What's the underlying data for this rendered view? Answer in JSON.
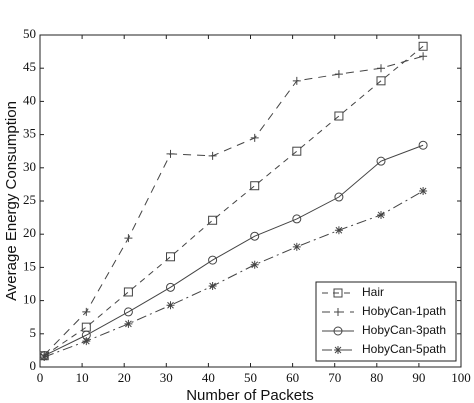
{
  "chart_data": {
    "type": "line",
    "x_label": "Number of Packets",
    "y_label": "Average Energy Consumption",
    "x": [
      1,
      11,
      21,
      31,
      41,
      51,
      61,
      71,
      81,
      91
    ],
    "series": [
      {
        "name": "Hair",
        "color": "#444444",
        "marker": "square",
        "dash": "6,5",
        "values": [
          1.7,
          6.0,
          11.3,
          16.6,
          22.1,
          27.3,
          32.5,
          37.8,
          43.1,
          48.3
        ]
      },
      {
        "name": "HobyCan-1path",
        "color": "#444444",
        "marker": "plus",
        "dash": "8,6",
        "values": [
          1.8,
          8.3,
          19.4,
          32.1,
          31.8,
          34.5,
          43.1,
          44.1,
          45.0,
          46.8
        ]
      },
      {
        "name": "HobyCan-3path",
        "color": "#444444",
        "marker": "circle",
        "dash": "none",
        "values": [
          1.7,
          4.8,
          8.3,
          12.0,
          16.1,
          19.7,
          22.3,
          25.6,
          31.0,
          33.4
        ]
      },
      {
        "name": "HobyCan-5path",
        "color": "#444444",
        "marker": "star",
        "dash": "10,4,2,4",
        "values": [
          1.5,
          3.9,
          6.5,
          9.3,
          12.2,
          15.4,
          18.1,
          20.6,
          22.9,
          26.5
        ]
      }
    ],
    "xlim": [
      0,
      100
    ],
    "xticks": [
      0,
      10,
      20,
      30,
      40,
      50,
      60,
      70,
      80,
      90,
      100
    ],
    "ylim": [
      0,
      50
    ],
    "yticks": [
      0,
      5,
      10,
      15,
      20,
      25,
      30,
      35,
      40,
      45,
      50
    ],
    "grid": false,
    "legend": "lower right"
  }
}
